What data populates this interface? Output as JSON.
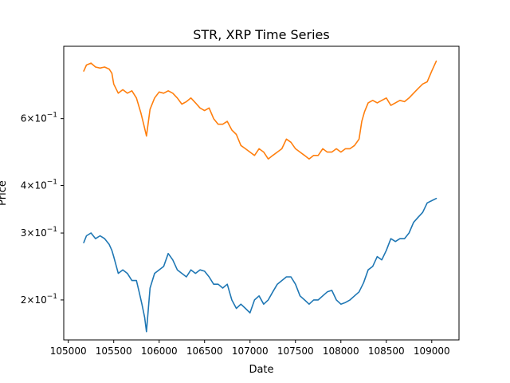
{
  "chart_data": {
    "type": "line",
    "title": "STR, XRP Time Series",
    "xlabel": "Date",
    "ylabel": "Price",
    "yscale": "log",
    "xlim": [
      104950,
      109300
    ],
    "ylim": [
      0.157,
      0.93
    ],
    "grid": false,
    "x_ticks": [
      {
        "value": 105000,
        "label": "105000"
      },
      {
        "value": 105500,
        "label": "105500"
      },
      {
        "value": 106000,
        "label": "106000"
      },
      {
        "value": 106500,
        "label": "106500"
      },
      {
        "value": 107000,
        "label": "107000"
      },
      {
        "value": 107500,
        "label": "107500"
      },
      {
        "value": 108000,
        "label": "108000"
      },
      {
        "value": 108500,
        "label": "108500"
      },
      {
        "value": 109000,
        "label": "109000"
      }
    ],
    "y_ticks": [
      {
        "value": 0.2,
        "mantissa": "2",
        "label": "2 × 10^-1"
      },
      {
        "value": 0.3,
        "mantissa": "3",
        "label": "3 × 10^-1"
      },
      {
        "value": 0.4,
        "mantissa": "4",
        "label": "4 × 10^-1"
      },
      {
        "value": 0.6,
        "mantissa": "6",
        "label": "6 × 10^-1"
      }
    ],
    "y_tick_base": "10",
    "y_tick_exponent": "−1",
    "series": [
      {
        "color": "#ff7f0e",
        "x": [
          105170,
          105200,
          105250,
          105300,
          105350,
          105400,
          105450,
          105480,
          105500,
          105550,
          105600,
          105650,
          105700,
          105750,
          105800,
          105830,
          105860,
          105900,
          105950,
          106000,
          106050,
          106100,
          106150,
          106200,
          106250,
          106300,
          106350,
          106400,
          106450,
          106500,
          106550,
          106600,
          106650,
          106700,
          106750,
          106800,
          106850,
          106900,
          106950,
          107000,
          107050,
          107100,
          107150,
          107200,
          107250,
          107300,
          107350,
          107400,
          107450,
          107500,
          107550,
          107600,
          107650,
          107700,
          107750,
          107800,
          107850,
          107900,
          107950,
          108000,
          108050,
          108100,
          108150,
          108200,
          108230,
          108260,
          108300,
          108350,
          108400,
          108450,
          108500,
          108550,
          108600,
          108650,
          108700,
          108750,
          108800,
          108850,
          108900,
          108950,
          109000,
          109050
        ],
        "values": [
          0.8,
          0.83,
          0.84,
          0.82,
          0.815,
          0.82,
          0.81,
          0.79,
          0.74,
          0.7,
          0.715,
          0.7,
          0.71,
          0.68,
          0.62,
          0.58,
          0.54,
          0.635,
          0.68,
          0.705,
          0.7,
          0.71,
          0.7,
          0.68,
          0.655,
          0.665,
          0.68,
          0.66,
          0.64,
          0.63,
          0.64,
          0.6,
          0.58,
          0.58,
          0.59,
          0.56,
          0.545,
          0.51,
          0.5,
          0.49,
          0.48,
          0.5,
          0.49,
          0.47,
          0.48,
          0.49,
          0.5,
          0.53,
          0.52,
          0.5,
          0.49,
          0.48,
          0.47,
          0.48,
          0.48,
          0.5,
          0.49,
          0.49,
          0.5,
          0.49,
          0.5,
          0.5,
          0.51,
          0.53,
          0.59,
          0.625,
          0.66,
          0.67,
          0.66,
          0.67,
          0.68,
          0.65,
          0.66,
          0.67,
          0.665,
          0.68,
          0.7,
          0.72,
          0.74,
          0.75,
          0.8,
          0.85
        ]
      },
      {
        "color": "#1f77b4",
        "x": [
          105170,
          105200,
          105250,
          105300,
          105350,
          105400,
          105450,
          105480,
          105500,
          105550,
          105600,
          105650,
          105700,
          105750,
          105780,
          105810,
          105840,
          105860,
          105900,
          105950,
          106000,
          106050,
          106100,
          106150,
          106200,
          106250,
          106300,
          106350,
          106400,
          106450,
          106500,
          106550,
          106600,
          106650,
          106700,
          106750,
          106800,
          106850,
          106900,
          106950,
          107000,
          107050,
          107100,
          107150,
          107200,
          107250,
          107300,
          107350,
          107400,
          107450,
          107500,
          107550,
          107600,
          107650,
          107700,
          107750,
          107800,
          107850,
          107900,
          107950,
          108000,
          108050,
          108100,
          108150,
          108200,
          108250,
          108300,
          108350,
          108400,
          108450,
          108500,
          108550,
          108600,
          108650,
          108700,
          108750,
          108800,
          108850,
          108900,
          108950,
          109000,
          109050
        ],
        "values": [
          0.283,
          0.295,
          0.3,
          0.29,
          0.295,
          0.29,
          0.28,
          0.27,
          0.26,
          0.235,
          0.24,
          0.235,
          0.225,
          0.225,
          0.21,
          0.195,
          0.18,
          0.165,
          0.215,
          0.235,
          0.24,
          0.245,
          0.265,
          0.255,
          0.24,
          0.235,
          0.23,
          0.24,
          0.235,
          0.24,
          0.238,
          0.23,
          0.22,
          0.22,
          0.215,
          0.22,
          0.2,
          0.19,
          0.195,
          0.19,
          0.185,
          0.2,
          0.205,
          0.195,
          0.2,
          0.21,
          0.22,
          0.225,
          0.23,
          0.23,
          0.22,
          0.205,
          0.2,
          0.195,
          0.2,
          0.2,
          0.205,
          0.21,
          0.212,
          0.2,
          0.195,
          0.197,
          0.2,
          0.205,
          0.21,
          0.222,
          0.24,
          0.245,
          0.26,
          0.255,
          0.27,
          0.29,
          0.285,
          0.29,
          0.29,
          0.3,
          0.32,
          0.33,
          0.34,
          0.36,
          0.365,
          0.37
        ]
      }
    ]
  }
}
